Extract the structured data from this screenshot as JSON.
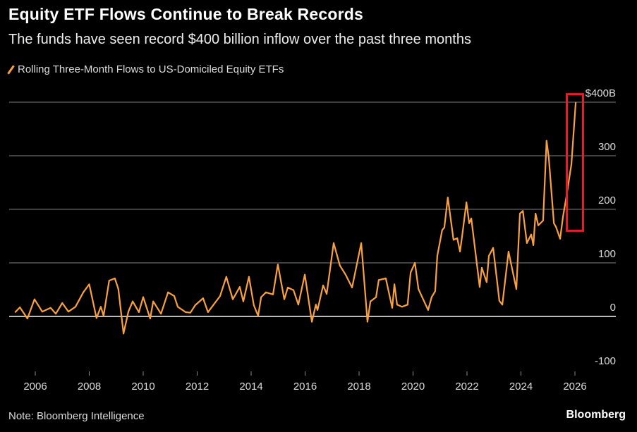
{
  "header": {
    "title": "Equity ETF Flows Continue to Break Records",
    "subtitle": "The funds have seen record $400 billion inflow over the past three months"
  },
  "footer": {
    "note": "Note: Bloomberg Intelligence",
    "brand": "Bloomberg"
  },
  "colors": {
    "line": "#f9a13f",
    "highlight": "#e0202a",
    "grid": "#555555",
    "zero_line": "#bbbbbb",
    "background": "#000000"
  },
  "chart_data": {
    "type": "line",
    "title": "Equity ETF Flows Continue to Break Records",
    "subtitle": "The funds have seen record $400 billion inflow over the past three months",
    "legend_position": "top-left",
    "grid": true,
    "ylim": [
      -100,
      400
    ],
    "xlim": [
      2005.0,
      2027.5
    ],
    "y_ticks": [
      {
        "value": 400,
        "label": "$400B"
      },
      {
        "value": 300,
        "label": "300"
      },
      {
        "value": 200,
        "label": "200"
      },
      {
        "value": 100,
        "label": "100"
      },
      {
        "value": 0,
        "label": "0"
      },
      {
        "value": -100,
        "label": "-100"
      }
    ],
    "x_ticks": [
      {
        "value": 2006,
        "label": "2006"
      },
      {
        "value": 2008,
        "label": "2008"
      },
      {
        "value": 2010,
        "label": "2010"
      },
      {
        "value": 2012,
        "label": "2012"
      },
      {
        "value": 2014,
        "label": "2014"
      },
      {
        "value": 2016,
        "label": "2016"
      },
      {
        "value": 2018,
        "label": "2018"
      },
      {
        "value": 2020,
        "label": "2020"
      },
      {
        "value": 2022,
        "label": "2022"
      },
      {
        "value": 2024,
        "label": "2024"
      },
      {
        "value": 2026,
        "label": "2026"
      }
    ],
    "highlight": {
      "x": [
        2025.7,
        2026.3
      ],
      "y": [
        160,
        415
      ]
    },
    "series": [
      {
        "name": "Rolling Three-Month Flows to US-Domiciled Equity ETFs",
        "x": [
          2005.26,
          2005.43,
          2005.71,
          2005.97,
          2006.26,
          2006.57,
          2006.76,
          2007.0,
          2007.23,
          2007.49,
          2007.78,
          2008.0,
          2008.27,
          2008.43,
          2008.53,
          2008.74,
          2008.95,
          2009.08,
          2009.27,
          2009.45,
          2009.61,
          2009.84,
          2010.0,
          2010.26,
          2010.37,
          2010.66,
          2010.92,
          2011.15,
          2011.28,
          2011.57,
          2011.75,
          2011.93,
          2012.22,
          2012.4,
          2012.61,
          2012.85,
          2013.08,
          2013.32,
          2013.58,
          2013.71,
          2013.92,
          2014.1,
          2014.26,
          2014.37,
          2014.55,
          2014.81,
          2014.99,
          2015.23,
          2015.36,
          2015.57,
          2015.75,
          2015.99,
          2016.25,
          2016.4,
          2016.46,
          2016.67,
          2016.8,
          2017.06,
          2017.29,
          2017.5,
          2017.74,
          2018.08,
          2018.31,
          2018.42,
          2018.63,
          2018.73,
          2018.99,
          2019.23,
          2019.31,
          2019.41,
          2019.59,
          2019.8,
          2019.91,
          2020.07,
          2020.2,
          2020.56,
          2020.69,
          2020.82,
          2020.9,
          2021.08,
          2021.16,
          2021.29,
          2021.5,
          2021.64,
          2021.74,
          2021.82,
          2021.98,
          2022.08,
          2022.16,
          2022.47,
          2022.55,
          2022.73,
          2022.81,
          2022.97,
          2023.2,
          2023.31,
          2023.54,
          2023.83,
          2023.96,
          2024.07,
          2024.22,
          2024.38,
          2024.46,
          2024.54,
          2024.64,
          2024.82,
          2024.95,
          2025.03,
          2025.22,
          2025.3,
          2025.45,
          2025.56,
          2025.69,
          2025.87,
          2026.03
        ],
        "values": [
          8,
          17,
          -4,
          32,
          9,
          16,
          5,
          25,
          9,
          18,
          45,
          60,
          -3,
          18,
          1,
          67,
          71,
          51,
          -32,
          9,
          28,
          8,
          36,
          -4,
          28,
          5,
          45,
          38,
          18,
          8,
          7,
          21,
          34,
          8,
          22,
          38,
          74,
          32,
          55,
          28,
          74,
          21,
          1,
          36,
          45,
          41,
          97,
          32,
          54,
          49,
          22,
          78,
          -10,
          22,
          12,
          58,
          42,
          137,
          95,
          78,
          54,
          137,
          -10,
          28,
          36,
          68,
          71,
          16,
          60,
          22,
          18,
          22,
          82,
          100,
          51,
          12,
          36,
          47,
          113,
          161,
          166,
          222,
          143,
          146,
          121,
          150,
          213,
          174,
          183,
          55,
          91,
          64,
          113,
          128,
          29,
          22,
          121,
          51,
          192,
          197,
          137,
          153,
          133,
          192,
          170,
          179,
          328,
          297,
          174,
          167,
          145,
          187,
          225,
          284,
          399
        ]
      }
    ]
  }
}
